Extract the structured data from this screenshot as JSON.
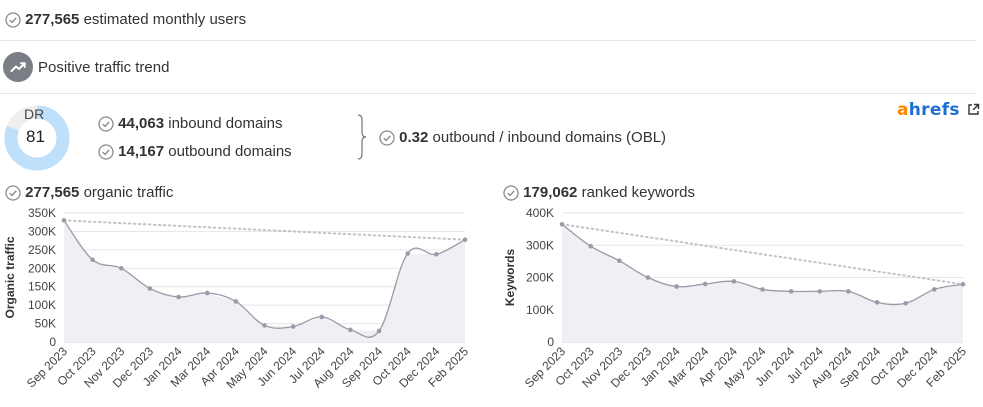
{
  "stats": {
    "monthly_users": {
      "value": "277,565",
      "label": " estimated monthly users"
    },
    "trend": {
      "label": "Positive traffic trend"
    },
    "dr": {
      "label": "DR",
      "value": "81",
      "value_num": 81
    },
    "inbound": {
      "value": "44,063",
      "label": " inbound domains"
    },
    "outbound": {
      "value": "14,167",
      "label": " outbound domains"
    },
    "obl": {
      "value": "0.32",
      "label": " outbound / inbound domains (OBL)"
    },
    "organic_traffic": {
      "value": "277,565",
      "label": " organic traffic"
    },
    "ranked_keywords": {
      "value": "179,062",
      "label": " ranked keywords"
    }
  },
  "brand": {
    "part1": "a",
    "part2": "hrefs",
    "link_icon": "external-link-icon"
  },
  "icons": {
    "check": "check-circle-icon",
    "trend": "trending-up-icon"
  },
  "colors": {
    "dr_arc": "#bfe0fb",
    "dr_track": "#efefef",
    "line": "#9a9aa8",
    "fill": "#f0f0f4",
    "trend_line": "#c2c2c8",
    "grid": "#e5e5e5",
    "ahrefs_orange": "#ff8800",
    "ahrefs_blue": "#1f6fd0"
  },
  "chart_data": [
    {
      "type": "area",
      "ylabel": "Organic traffic",
      "x": [
        "Sep 2023",
        "Oct 2023",
        "Nov 2023",
        "Dec 2023",
        "Jan 2024",
        "Mar 2024",
        "Apr 2024",
        "May 2024",
        "Jun 2024",
        "Jul 2024",
        "Aug 2024",
        "Sep 2024",
        "Oct 2024",
        "Dec 2024",
        "Feb 2025"
      ],
      "values": [
        330000,
        223000,
        200000,
        145000,
        122000,
        133000,
        110000,
        45000,
        42000,
        68000,
        33000,
        30000,
        240000,
        238000,
        277565
      ],
      "trendline": [
        330000,
        277565
      ],
      "ylim": [
        0,
        350000
      ],
      "yticks": [
        0,
        50000,
        100000,
        150000,
        200000,
        250000,
        300000,
        350000
      ],
      "ytick_labels": [
        "0",
        "50K",
        "100K",
        "150K",
        "200K",
        "250K",
        "300K",
        "350K"
      ],
      "grid": true
    },
    {
      "type": "area",
      "ylabel": "Keywords",
      "x": [
        "Sep 2023",
        "Oct 2023",
        "Nov 2023",
        "Dec 2023",
        "Jan 2024",
        "Mar 2024",
        "Apr 2024",
        "May 2024",
        "Jun 2024",
        "Jul 2024",
        "Aug 2024",
        "Sep 2024",
        "Oct 2024",
        "Dec 2024",
        "Feb 2025"
      ],
      "values": [
        365000,
        297000,
        252000,
        200000,
        172000,
        180000,
        188000,
        163000,
        157000,
        157000,
        157000,
        123000,
        120000,
        163000,
        179062
      ],
      "trendline": [
        365000,
        179062
      ],
      "ylim": [
        0,
        400000
      ],
      "yticks": [
        0,
        100000,
        200000,
        300000,
        400000
      ],
      "ytick_labels": [
        "0",
        "100K",
        "200K",
        "300K",
        "400K"
      ],
      "grid": true
    }
  ]
}
